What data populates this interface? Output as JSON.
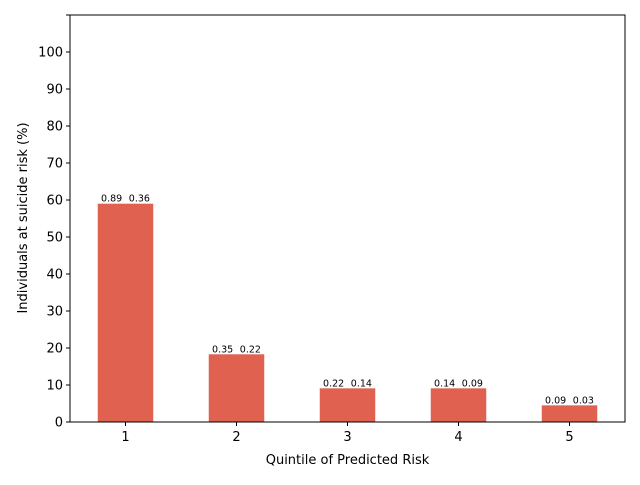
{
  "chart_data": {
    "type": "bar",
    "xlabel": "Quintile of Predicted Risk",
    "ylabel": "Individuals at suicide risk (%)",
    "categories": [
      "1",
      "2",
      "3",
      "4",
      "5"
    ],
    "values": [
      59,
      18.3,
      9.1,
      9.1,
      4.5
    ],
    "bar_labels": [
      [
        "0.89",
        "0.36"
      ],
      [
        "0.35",
        "0.22"
      ],
      [
        "0.22",
        "0.14"
      ],
      [
        "0.14",
        "0.09"
      ],
      [
        "0.09",
        "0.03"
      ]
    ],
    "ylim": [
      0,
      110
    ],
    "yticks": [
      0,
      10,
      20,
      30,
      40,
      50,
      60,
      70,
      80,
      90,
      100
    ],
    "grid": false,
    "legend": "none",
    "bar_color": "#e06150"
  }
}
